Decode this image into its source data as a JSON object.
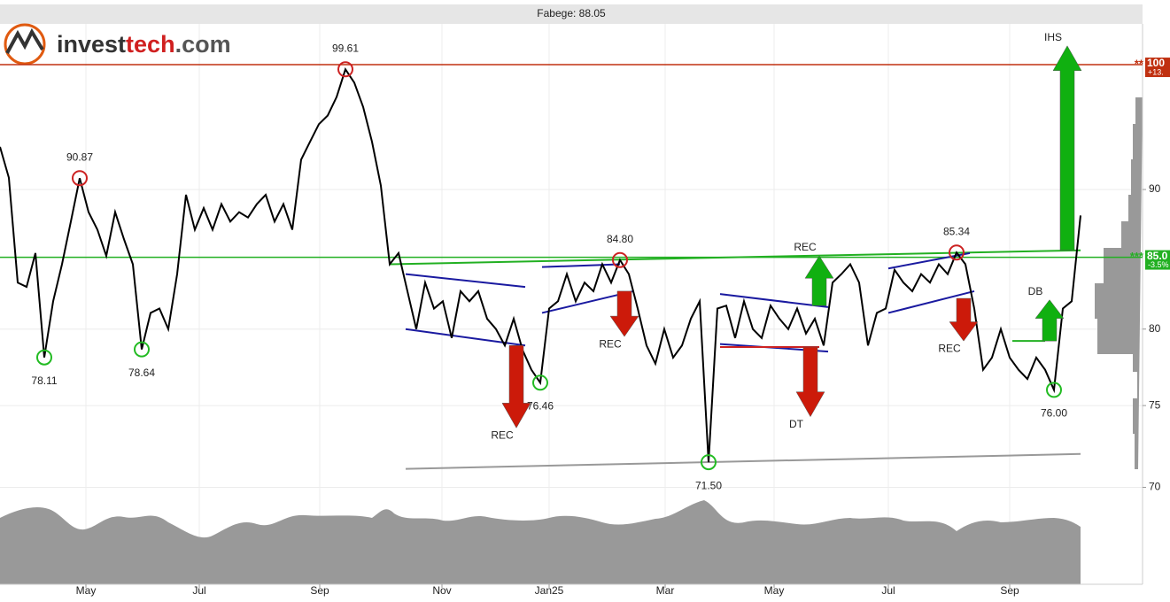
{
  "chart_data": {
    "type": "line",
    "title": "Fabege: 88.05",
    "brand": [
      "invest",
      "tech",
      ".com"
    ],
    "log_scale": true,
    "grid": true,
    "color": "#000000",
    "values": [
      93.3,
      90.9,
      83.2,
      82.9,
      85.3,
      78.11,
      81.9,
      84.5,
      87.6,
      90.87,
      88.3,
      87.0,
      85.1,
      88.3,
      86.3,
      84.5,
      78.64,
      81.1,
      81.4,
      80.0,
      83.8,
      89.6,
      87.0,
      88.6,
      87.0,
      88.9,
      87.6,
      88.3,
      87.9,
      88.9,
      89.6,
      87.6,
      88.9,
      87.0,
      92.3,
      93.7,
      95.1,
      95.8,
      97.3,
      99.61,
      98.5,
      96.5,
      93.7,
      90.3,
      84.5,
      85.3,
      82.6,
      80.0,
      83.2,
      81.4,
      81.9,
      79.4,
      82.6,
      81.9,
      82.6,
      80.7,
      80.0,
      78.9,
      80.7,
      78.6,
      77.3,
      76.46,
      81.4,
      81.9,
      83.8,
      81.9,
      83.2,
      82.6,
      84.5,
      83.2,
      84.8,
      83.8,
      81.4,
      78.9,
      77.7,
      80.0,
      78.1,
      78.9,
      80.7,
      81.9,
      71.5,
      81.4,
      81.6,
      79.4,
      81.9,
      80.0,
      79.4,
      81.6,
      80.7,
      80.0,
      81.4,
      79.7,
      80.7,
      78.9,
      83.2,
      83.8,
      84.5,
      83.2,
      78.9,
      81.1,
      81.4,
      84.1,
      83.2,
      82.6,
      83.8,
      83.2,
      84.5,
      83.8,
      85.34,
      84.5,
      81.4,
      77.3,
      78.1,
      80.0,
      78.1,
      77.3,
      76.7,
      78.1,
      77.3,
      76.0,
      81.4,
      81.9,
      88.05
    ],
    "xlim": [
      0,
      129
    ],
    "ylim": [
      64.5,
      103.5
    ],
    "yticks": [
      70,
      75,
      80,
      90
    ],
    "xticks": [
      {
        "value": 9.7,
        "label": "May"
      },
      {
        "value": 22.5,
        "label": "Jul"
      },
      {
        "value": 36.1,
        "label": "Sep"
      },
      {
        "value": 49.9,
        "label": "Nov"
      },
      {
        "value": 62.0,
        "label": "Jan25"
      },
      {
        "value": 75.1,
        "label": "Mar"
      },
      {
        "value": 87.4,
        "label": "May"
      },
      {
        "value": 100.3,
        "label": "Jul"
      },
      {
        "value": 114.0,
        "label": "Sep"
      }
    ],
    "extremes": [
      {
        "x": 5,
        "value": 78.11,
        "label": "78.11",
        "kind": "low"
      },
      {
        "x": 9,
        "value": 90.87,
        "label": "90.87",
        "kind": "high"
      },
      {
        "x": 16,
        "value": 78.64,
        "label": "78.64",
        "kind": "low"
      },
      {
        "x": 39,
        "value": 99.61,
        "label": "99.61",
        "kind": "high"
      },
      {
        "x": 61,
        "value": 76.46,
        "label": "76.46",
        "kind": "low"
      },
      {
        "x": 70,
        "value": 84.8,
        "label": "84.80",
        "kind": "high"
      },
      {
        "x": 80,
        "value": 71.5,
        "label": "71.50",
        "kind": "low"
      },
      {
        "x": 108,
        "value": 85.34,
        "label": "85.34",
        "kind": "high"
      },
      {
        "x": 119,
        "value": 76.0,
        "label": "76.00",
        "kind": "low"
      }
    ],
    "levels": [
      {
        "value": 100,
        "color": "#c03010",
        "label": "100",
        "change": "+13.",
        "stars": "**"
      },
      {
        "value": 85.0,
        "color": "#22b022",
        "label": "85.0",
        "change": "-3.5%",
        "stars": "***"
      }
    ],
    "trend_lines": [
      {
        "x": [
          44,
          122
        ],
        "y": [
          84.5,
          85.5
        ],
        "color": "#22b022"
      },
      {
        "x": [
          45.8,
          122
        ],
        "y": [
          71.1,
          72.0
        ],
        "color": "#999999"
      },
      {
        "x": [
          45.8,
          59.3
        ],
        "y": [
          83.8,
          82.9
        ],
        "color": "#1a1aa0"
      },
      {
        "x": [
          45.8,
          59.3
        ],
        "y": [
          80.0,
          78.9
        ],
        "color": "#1a1aa0"
      },
      {
        "x": [
          61.2,
          70
        ],
        "y": [
          84.3,
          84.5
        ],
        "color": "#1a1aa0"
      },
      {
        "x": [
          61.2,
          71.5
        ],
        "y": [
          81.1,
          82.6
        ],
        "color": "#1a1aa0"
      },
      {
        "x": [
          81.3,
          93.5
        ],
        "y": [
          82.4,
          81.5
        ],
        "color": "#1a1aa0"
      },
      {
        "x": [
          81.3,
          93.5
        ],
        "y": [
          79.0,
          78.5
        ],
        "color": "#1a1aa0"
      },
      {
        "x": [
          81.3,
          92.5
        ],
        "y": [
          78.8,
          78.8
        ],
        "color": "#cc2222"
      },
      {
        "x": [
          100.3,
          109.5
        ],
        "y": [
          84.2,
          85.3
        ],
        "color": "#1a1aa0"
      },
      {
        "x": [
          100.3,
          110
        ],
        "y": [
          81.1,
          82.6
        ],
        "color": "#1a1aa0"
      },
      {
        "x": [
          114.3,
          118
        ],
        "y": [
          79.2,
          79.2
        ],
        "color": "#22b022"
      }
    ],
    "signals": [
      {
        "label": "REC",
        "x": 58.3,
        "from": 78.9,
        "to": 73.6,
        "color": "#cc1a0a"
      },
      {
        "label": "REC",
        "x": 70.5,
        "from": 82.6,
        "to": 79.5,
        "color": "#cc1a0a"
      },
      {
        "label": "REC",
        "x": 92.5,
        "from": 81.6,
        "to": 85.1,
        "color": "#10b010"
      },
      {
        "label": "DT",
        "x": 91.5,
        "from": 78.8,
        "to": 74.3,
        "color": "#cc1a0a"
      },
      {
        "label": "REC",
        "x": 108.8,
        "from": 82.1,
        "to": 79.2,
        "color": "#cc1a0a"
      },
      {
        "label": "DB",
        "x": 118.5,
        "from": 79.2,
        "to": 82.0,
        "color": "#10b010"
      },
      {
        "label": "IHS",
        "x": 120.5,
        "from": 85.5,
        "to": 101.6,
        "color": "#10b010"
      }
    ]
  }
}
